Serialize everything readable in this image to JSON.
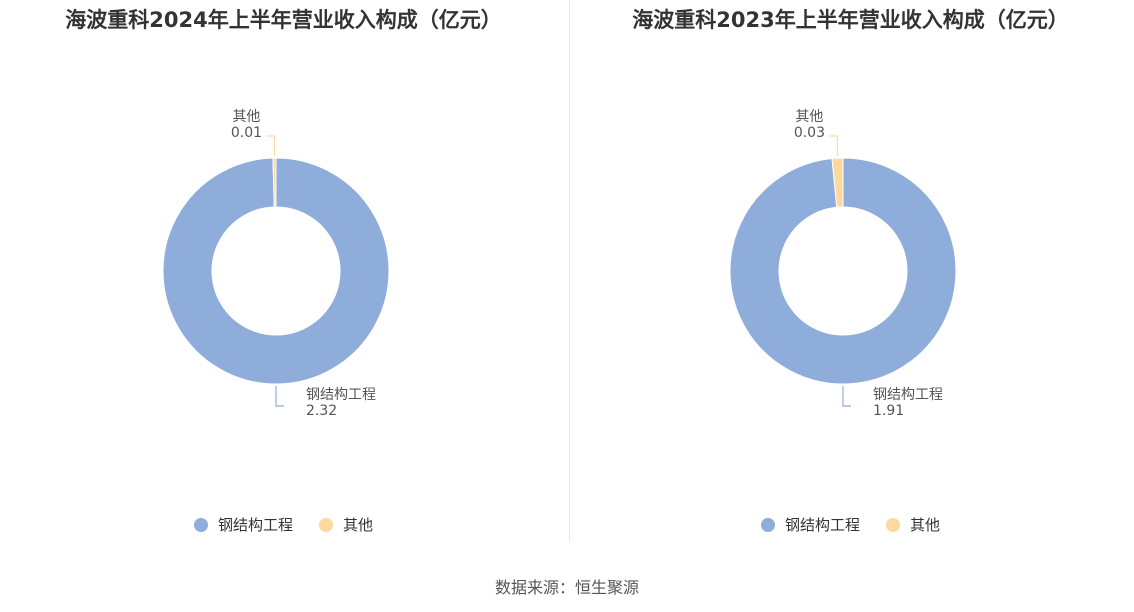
{
  "source": "数据来源：恒生聚源",
  "colors": {
    "main": "#8eaddb",
    "other": "#fdd9a0",
    "label_text": "#555555"
  },
  "chart_data": [
    {
      "type": "pie",
      "title": "海波重科2024年上半年营业收入构成（亿元）",
      "slices": [
        {
          "name": "钢结构工程",
          "value": 2.32,
          "value_label": "2.32"
        },
        {
          "name": "其他",
          "value": 0.01,
          "value_label": "0.01"
        }
      ],
      "legend": {
        "position": "bottom",
        "entries": [
          "钢结构工程",
          "其他"
        ]
      }
    },
    {
      "type": "pie",
      "title": "海波重科2023年上半年营业收入构成（亿元）",
      "slices": [
        {
          "name": "钢结构工程",
          "value": 1.91,
          "value_label": "1.91"
        },
        {
          "name": "其他",
          "value": 0.03,
          "value_label": "0.03"
        }
      ],
      "legend": {
        "position": "bottom",
        "entries": [
          "钢结构工程",
          "其他"
        ]
      }
    }
  ]
}
